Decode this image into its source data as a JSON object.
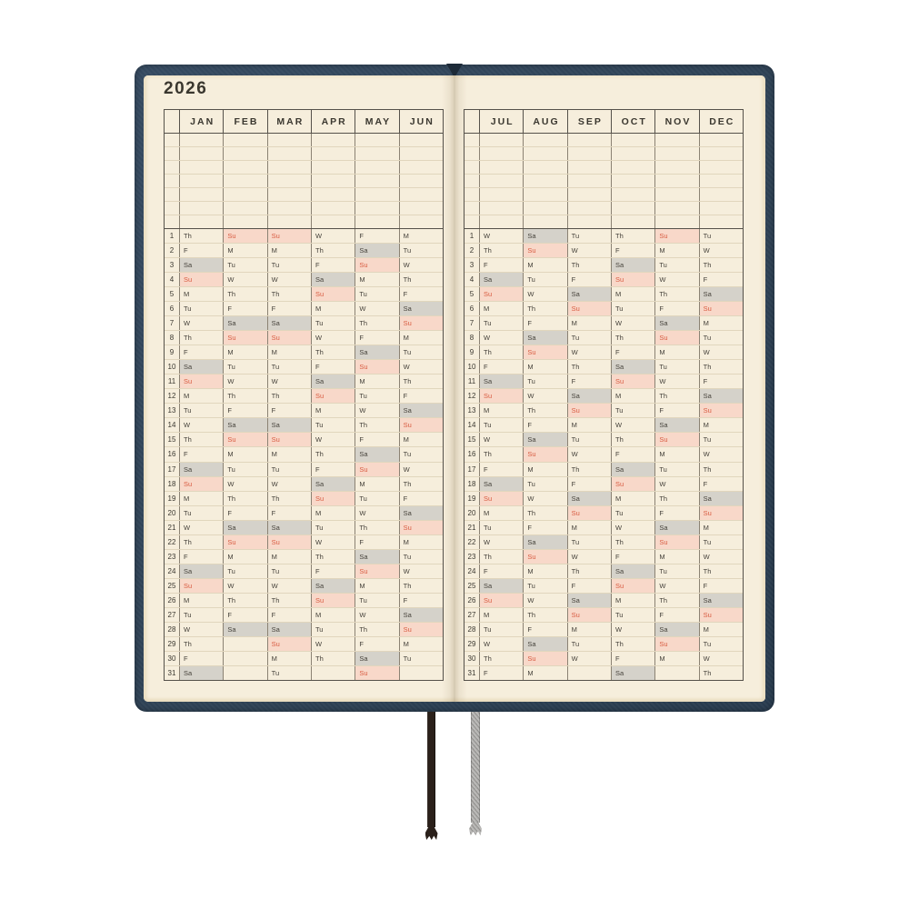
{
  "year": "2026",
  "blank_rows": 7,
  "day_numbers": [
    1,
    2,
    3,
    4,
    5,
    6,
    7,
    8,
    9,
    10,
    11,
    12,
    13,
    14,
    15,
    16,
    17,
    18,
    19,
    20,
    21,
    22,
    23,
    24,
    25,
    26,
    27,
    28,
    29,
    30,
    31
  ],
  "weekday_key": {
    "sunday": "Su",
    "saturday": "Sa"
  },
  "pages": {
    "left": {
      "months": [
        {
          "label": "JAN",
          "days": [
            "Th",
            "F",
            "Sa",
            "Su",
            "M",
            "Tu",
            "W",
            "Th",
            "F",
            "Sa",
            "Su",
            "M",
            "Tu",
            "W",
            "Th",
            "F",
            "Sa",
            "Su",
            "M",
            "Tu",
            "W",
            "Th",
            "F",
            "Sa",
            "Su",
            "M",
            "Tu",
            "W",
            "Th",
            "F",
            "Sa"
          ]
        },
        {
          "label": "FEB",
          "days": [
            "Su",
            "M",
            "Tu",
            "W",
            "Th",
            "F",
            "Sa",
            "Su",
            "M",
            "Tu",
            "W",
            "Th",
            "F",
            "Sa",
            "Su",
            "M",
            "Tu",
            "W",
            "Th",
            "F",
            "Sa",
            "Su",
            "M",
            "Tu",
            "W",
            "Th",
            "F",
            "Sa",
            "",
            "",
            ""
          ]
        },
        {
          "label": "MAR",
          "days": [
            "Su",
            "M",
            "Tu",
            "W",
            "Th",
            "F",
            "Sa",
            "Su",
            "M",
            "Tu",
            "W",
            "Th",
            "F",
            "Sa",
            "Su",
            "M",
            "Tu",
            "W",
            "Th",
            "F",
            "Sa",
            "Su",
            "M",
            "Tu",
            "W",
            "Th",
            "F",
            "Sa",
            "Su",
            "M",
            "Tu"
          ]
        },
        {
          "label": "APR",
          "days": [
            "W",
            "Th",
            "F",
            "Sa",
            "Su",
            "M",
            "Tu",
            "W",
            "Th",
            "F",
            "Sa",
            "Su",
            "M",
            "Tu",
            "W",
            "Th",
            "F",
            "Sa",
            "Su",
            "M",
            "Tu",
            "W",
            "Th",
            "F",
            "Sa",
            "Su",
            "M",
            "Tu",
            "W",
            "Th",
            ""
          ]
        },
        {
          "label": "MAY",
          "days": [
            "F",
            "Sa",
            "Su",
            "M",
            "Tu",
            "W",
            "Th",
            "F",
            "Sa",
            "Su",
            "M",
            "Tu",
            "W",
            "Th",
            "F",
            "Sa",
            "Su",
            "M",
            "Tu",
            "W",
            "Th",
            "F",
            "Sa",
            "Su",
            "M",
            "Tu",
            "W",
            "Th",
            "F",
            "Sa",
            "Su"
          ]
        },
        {
          "label": "JUN",
          "days": [
            "M",
            "Tu",
            "W",
            "Th",
            "F",
            "Sa",
            "Su",
            "M",
            "Tu",
            "W",
            "Th",
            "F",
            "Sa",
            "Su",
            "M",
            "Tu",
            "W",
            "Th",
            "F",
            "Sa",
            "Su",
            "M",
            "Tu",
            "W",
            "Th",
            "F",
            "Sa",
            "Su",
            "M",
            "Tu",
            ""
          ]
        }
      ]
    },
    "right": {
      "months": [
        {
          "label": "JUL",
          "days": [
            "W",
            "Th",
            "F",
            "Sa",
            "Su",
            "M",
            "Tu",
            "W",
            "Th",
            "F",
            "Sa",
            "Su",
            "M",
            "Tu",
            "W",
            "Th",
            "F",
            "Sa",
            "Su",
            "M",
            "Tu",
            "W",
            "Th",
            "F",
            "Sa",
            "Su",
            "M",
            "Tu",
            "W",
            "Th",
            "F"
          ]
        },
        {
          "label": "AUG",
          "days": [
            "Sa",
            "Su",
            "M",
            "Tu",
            "W",
            "Th",
            "F",
            "Sa",
            "Su",
            "M",
            "Tu",
            "W",
            "Th",
            "F",
            "Sa",
            "Su",
            "M",
            "Tu",
            "W",
            "Th",
            "F",
            "Sa",
            "Su",
            "M",
            "Tu",
            "W",
            "Th",
            "F",
            "Sa",
            "Su",
            "M"
          ]
        },
        {
          "label": "SEP",
          "days": [
            "Tu",
            "W",
            "Th",
            "F",
            "Sa",
            "Su",
            "M",
            "Tu",
            "W",
            "Th",
            "F",
            "Sa",
            "Su",
            "M",
            "Tu",
            "W",
            "Th",
            "F",
            "Sa",
            "Su",
            "M",
            "Tu",
            "W",
            "Th",
            "F",
            "Sa",
            "Su",
            "M",
            "Tu",
            "W",
            ""
          ]
        },
        {
          "label": "OCT",
          "days": [
            "Th",
            "F",
            "Sa",
            "Su",
            "M",
            "Tu",
            "W",
            "Th",
            "F",
            "Sa",
            "Su",
            "M",
            "Tu",
            "W",
            "Th",
            "F",
            "Sa",
            "Su",
            "M",
            "Tu",
            "W",
            "Th",
            "F",
            "Sa",
            "Su",
            "M",
            "Tu",
            "W",
            "Th",
            "F",
            "Sa"
          ]
        },
        {
          "label": "NOV",
          "days": [
            "Su",
            "M",
            "Tu",
            "W",
            "Th",
            "F",
            "Sa",
            "Su",
            "M",
            "Tu",
            "W",
            "Th",
            "F",
            "Sa",
            "Su",
            "M",
            "Tu",
            "W",
            "Th",
            "F",
            "Sa",
            "Su",
            "M",
            "Tu",
            "W",
            "Th",
            "F",
            "Sa",
            "Su",
            "M",
            ""
          ]
        },
        {
          "label": "DEC",
          "days": [
            "Tu",
            "W",
            "Th",
            "F",
            "Sa",
            "Su",
            "M",
            "Tu",
            "W",
            "Th",
            "F",
            "Sa",
            "Su",
            "M",
            "Tu",
            "W",
            "Th",
            "F",
            "Sa",
            "Su",
            "M",
            "Tu",
            "W",
            "Th",
            "F",
            "Sa",
            "Su",
            "M",
            "Tu",
            "W",
            "Th"
          ]
        }
      ]
    }
  },
  "styles": {
    "cover": "#2e4154",
    "page": "#f6eedc",
    "ink": "#46423b",
    "ink_dark": "#3a372f",
    "grid_dark": "#55514a",
    "grid_mid": "#8b8273",
    "grid_light": "#e1d6bd",
    "sunday_bg": "#f8d8c9",
    "sunday_text": "#d85b41",
    "saturday_bg": "#d5d2ca",
    "bookmark_dark": "#2a201a",
    "bookmark_gray": "#a9a8a6"
  }
}
